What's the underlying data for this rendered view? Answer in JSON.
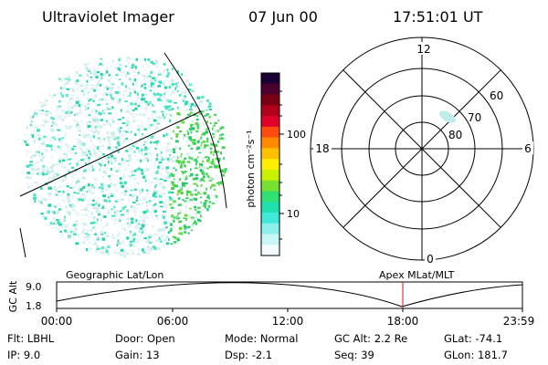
{
  "header": {
    "instrument": "Ultraviolet Imager",
    "date": "07 Jun 00",
    "time": "17:51:01 UT"
  },
  "colorbar": {
    "unit_label": "photon cm⁻²s⁻¹",
    "tick_labels": [
      "100",
      "10"
    ],
    "colors": [
      "#1a0033",
      "#4b0030",
      "#7a0016",
      "#b0001a",
      "#e0002a",
      "#ff4a10",
      "#ff8a00",
      "#ffc000",
      "#ffee00",
      "#c8f000",
      "#78e030",
      "#30e070",
      "#20e0b0",
      "#40e8d8",
      "#8ef0ec",
      "#c8f6f4",
      "#f2fbfb"
    ]
  },
  "polar_plot": {
    "mlt_labels": {
      "top": "12",
      "left": "18",
      "right": "6",
      "bottom": "0"
    },
    "lat_labels": [
      "60",
      "70",
      "80"
    ]
  },
  "altitude_strip": {
    "axis_title": "GC Alt",
    "y_ticks": [
      "9.0",
      "1.8"
    ],
    "left_title": "Geographic Lat/Lon",
    "right_title": "Apex MLat/MLT",
    "time_ticks": [
      "00:00",
      "06:00",
      "12:00",
      "18:00",
      "23:59"
    ]
  },
  "info": {
    "row1": [
      {
        "label": "Flt:",
        "value": "LBHL"
      },
      {
        "label": "Door:",
        "value": "Open"
      },
      {
        "label": "Mode:",
        "value": "Normal"
      },
      {
        "label": "GC Alt:",
        "value": "2.2 Re"
      },
      {
        "label": "GLat:",
        "value": "-74.1"
      }
    ],
    "row2": [
      {
        "label": "IP:",
        "value": "9.0"
      },
      {
        "label": "Gain:",
        "value": "13"
      },
      {
        "label": "Dsp:",
        "value": "-2.1"
      },
      {
        "label": "Seq:",
        "value": "39"
      },
      {
        "label": "GLon:",
        "value": "181.7"
      }
    ]
  }
}
